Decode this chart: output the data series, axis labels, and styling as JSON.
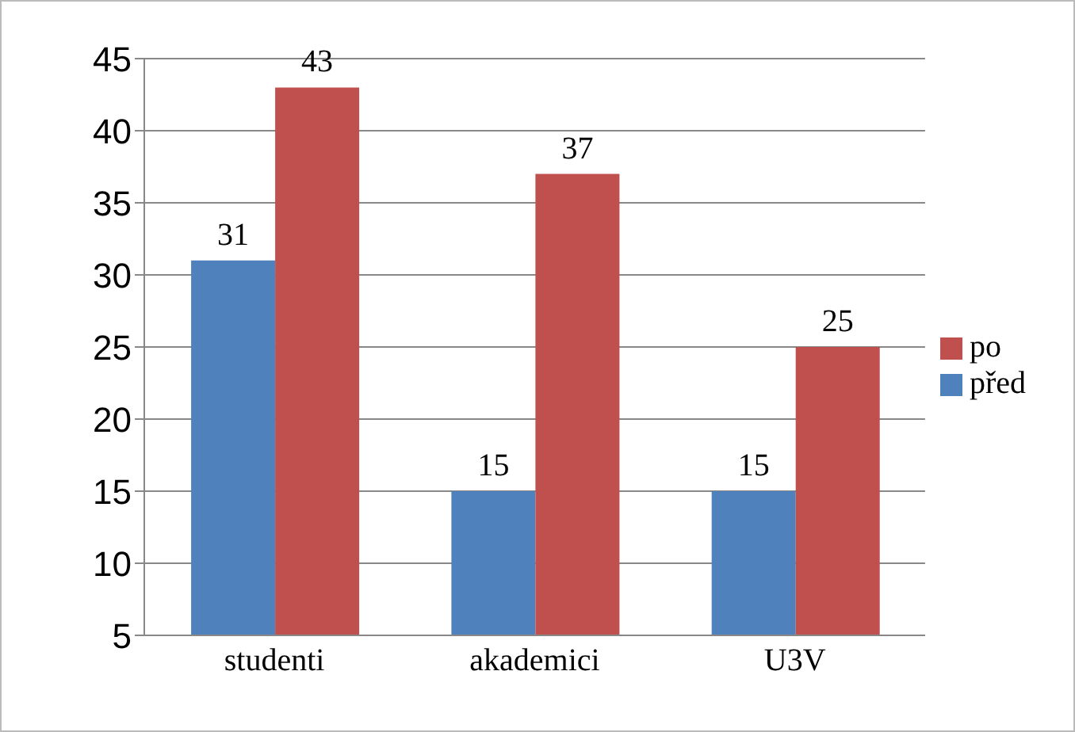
{
  "chart_data": {
    "type": "bar",
    "categories": [
      "studenti",
      "akademici",
      "U3V"
    ],
    "series": [
      {
        "name": "před",
        "color": "#4f81bd",
        "values": [
          31,
          15,
          15
        ]
      },
      {
        "name": "po",
        "color": "#c0504d",
        "values": [
          43,
          37,
          25
        ]
      }
    ],
    "ylim": [
      5,
      45
    ],
    "yticks": [
      5,
      10,
      15,
      20,
      25,
      30,
      35,
      40,
      45
    ],
    "grid": "y",
    "legend": "right",
    "data_labels": true
  }
}
